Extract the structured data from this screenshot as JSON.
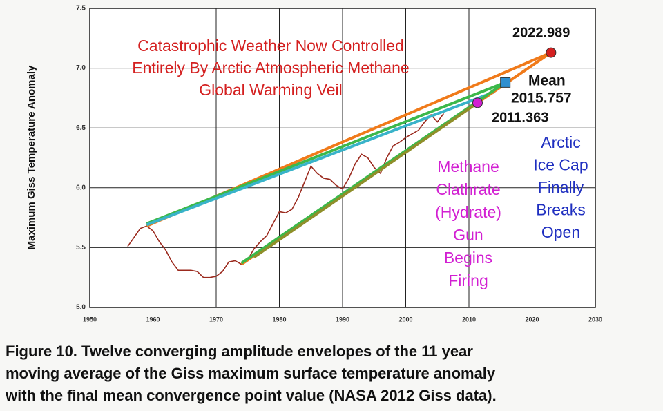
{
  "chart_data": {
    "type": "line",
    "y_label": "Maximum Giss Temperature Anomaly",
    "xlim": [
      1950,
      2030
    ],
    "ylim": [
      5.0,
      7.5
    ],
    "xticks": [
      1950,
      1960,
      1970,
      1980,
      1990,
      2000,
      2010,
      2020,
      2030
    ],
    "yticks": [
      {
        "value": 5.0,
        "label": "5.0"
      },
      {
        "value": 5.5,
        "label": "5.5"
      },
      {
        "value": 6.0,
        "label": "6.0"
      },
      {
        "value": 6.5,
        "label": "6.5"
      },
      {
        "value": 7.0,
        "label": "7.0"
      },
      {
        "value": 7.5,
        "label": "7.5"
      }
    ],
    "grid": true,
    "series": [
      {
        "color": "#9b2a1e",
        "x": [
          1956,
          1958,
          1959,
          1960,
          1961,
          1962,
          1963,
          1964,
          1965,
          1966,
          1967,
          1968,
          1969,
          1970,
          1971,
          1972,
          1973,
          1974,
          1975,
          1976,
          1977,
          1978,
          1979,
          1980,
          1981,
          1982,
          1983,
          1984,
          1985,
          1986,
          1987,
          1988,
          1989,
          1990,
          1991,
          1992,
          1993,
          1994,
          1995,
          1996,
          1997,
          1998,
          1999,
          2000,
          2001,
          2002,
          2003,
          2004,
          2005,
          2006
        ],
        "values": [
          5.51,
          5.66,
          5.68,
          5.64,
          5.55,
          5.48,
          5.38,
          5.31,
          5.31,
          5.31,
          5.3,
          5.25,
          5.25,
          5.26,
          5.3,
          5.38,
          5.39,
          5.36,
          5.4,
          5.49,
          5.55,
          5.6,
          5.7,
          5.8,
          5.79,
          5.82,
          5.92,
          6.05,
          6.18,
          6.12,
          6.08,
          6.07,
          6.02,
          5.99,
          6.08,
          6.2,
          6.28,
          6.25,
          6.17,
          6.12,
          6.25,
          6.35,
          6.38,
          6.42,
          6.45,
          6.48,
          6.55,
          6.61,
          6.55,
          6.62
        ]
      },
      {
        "color": "#f07a1a",
        "x": [
          1959,
          2022.989
        ],
        "values": [
          5.68,
          7.13
        ]
      },
      {
        "color": "#3cb84a",
        "x": [
          1959,
          2015.757
        ],
        "values": [
          5.7,
          6.88
        ]
      },
      {
        "color": "#39b3c9",
        "x": [
          1959,
          2014
        ],
        "values": [
          5.69,
          6.8
        ]
      },
      {
        "color": "#f07a1a",
        "x": [
          1974,
          2022.989
        ],
        "values": [
          5.36,
          7.13
        ]
      },
      {
        "color": "#3cb84a",
        "x": [
          1974,
          2015.757
        ],
        "values": [
          5.37,
          6.88
        ]
      },
      {
        "color": "#8f8f2a",
        "x": [
          1976,
          2011.363
        ],
        "values": [
          5.42,
          6.71
        ]
      },
      {
        "color": "#d42020",
        "marker": "circle",
        "x": [
          2022.989
        ],
        "values": [
          7.13
        ]
      },
      {
        "color": "#2f8fcf",
        "marker": "square",
        "x": [
          2015.757
        ],
        "values": [
          6.88
        ]
      },
      {
        "color": "#d21fd2",
        "marker": "circle",
        "x": [
          2011.363
        ],
        "values": [
          6.71
        ]
      }
    ],
    "annotations": [
      {
        "color": "#d42020",
        "lines": [
          "Catastrophic Weather Now Controlled",
          "Entirely By Arctic Atmospheric Methane",
          "Global Warming Veil"
        ]
      },
      {
        "color": "#111111",
        "lines": [
          "Mean"
        ]
      },
      {
        "color": "#1f2fc0",
        "lines": [
          "Arctic",
          "Ice Cap",
          "Finally",
          "Breaks",
          "Open"
        ]
      },
      {
        "color": "#d21fd2",
        "lines": [
          "Methane",
          "Clathrate",
          "(Hydrate)",
          "Gun",
          "Begins",
          "Firing"
        ]
      }
    ]
  },
  "caption": [
    "Figure 10.  Twelve converging amplitude envelopes of the 11 year",
    "moving average of the Giss maximum surface temperature anomaly",
    "with the final mean convergence point value (NASA 2012 Giss data)."
  ]
}
